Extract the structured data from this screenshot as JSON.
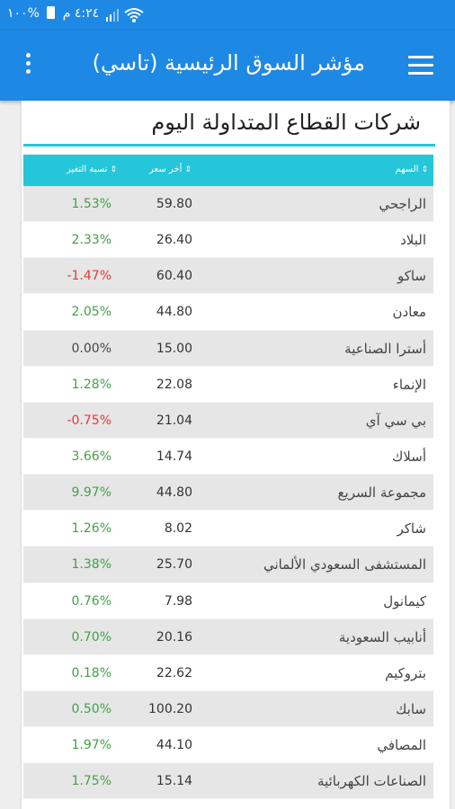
{
  "status_bar": {
    "time": "٤:٢٤ م",
    "battery": "%١٠٠"
  },
  "app_bar": {
    "title": "مؤشر السوق الرئيسية (تاسي)"
  },
  "section": {
    "title": "شركات القطاع المتداولة اليوم"
  },
  "table": {
    "headers": {
      "name": "السهم",
      "last": "أخر سعر",
      "change": "نسبة التغير"
    },
    "rows": [
      {
        "name": "الراجحي",
        "last": "59.80",
        "change": "1.53%",
        "dir": "pos"
      },
      {
        "name": "البلاد",
        "last": "26.40",
        "change": "2.33%",
        "dir": "pos"
      },
      {
        "name": "ساكو",
        "last": "60.40",
        "change": "-1.47%",
        "dir": "neg"
      },
      {
        "name": "معادن",
        "last": "44.80",
        "change": "2.05%",
        "dir": "pos"
      },
      {
        "name": "أسترا الصناعية",
        "last": "15.00",
        "change": "0.00%",
        "dir": "zero"
      },
      {
        "name": "الإنماء",
        "last": "22.08",
        "change": "1.28%",
        "dir": "pos"
      },
      {
        "name": "بي سي آي",
        "last": "21.04",
        "change": "-0.75%",
        "dir": "neg"
      },
      {
        "name": "أسلاك",
        "last": "14.74",
        "change": "3.66%",
        "dir": "pos"
      },
      {
        "name": "مجموعة السريع",
        "last": "44.80",
        "change": "9.97%",
        "dir": "pos"
      },
      {
        "name": "شاكر",
        "last": "8.02",
        "change": "1.26%",
        "dir": "pos"
      },
      {
        "name": "المستشفى السعودي الألماني",
        "last": "25.70",
        "change": "1.38%",
        "dir": "pos"
      },
      {
        "name": "كيمانول",
        "last": "7.98",
        "change": "0.76%",
        "dir": "pos"
      },
      {
        "name": "أنابيب السعودية",
        "last": "20.16",
        "change": "0.70%",
        "dir": "pos"
      },
      {
        "name": "بتروكيم",
        "last": "22.62",
        "change": "0.18%",
        "dir": "pos"
      },
      {
        "name": "سابك",
        "last": "100.20",
        "change": "0.50%",
        "dir": "pos"
      },
      {
        "name": "المصافي",
        "last": "44.10",
        "change": "1.97%",
        "dir": "pos"
      },
      {
        "name": "الصناعات الكهربائية",
        "last": "15.14",
        "change": "1.75%",
        "dir": "pos"
      }
    ]
  },
  "colors": {
    "app_bar": "#1e88e5",
    "table_header": "#26c6da",
    "positive": "#43a047",
    "negative": "#e53935"
  }
}
